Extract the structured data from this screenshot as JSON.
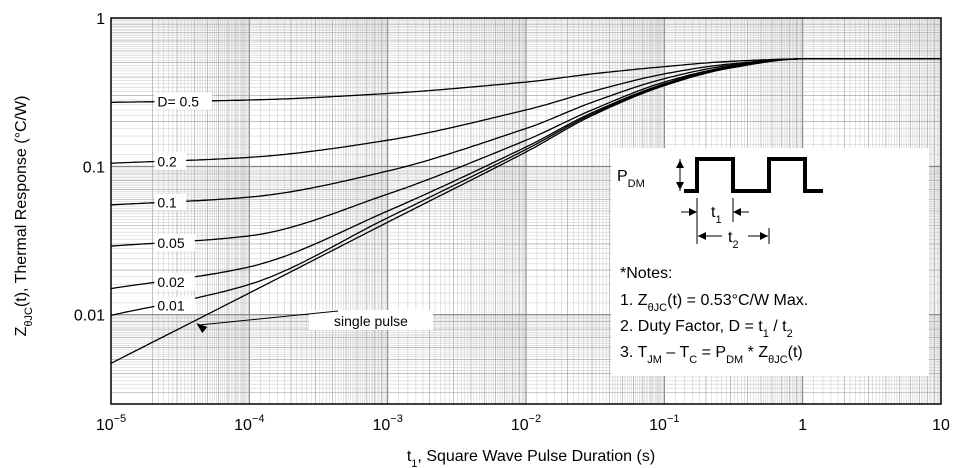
{
  "chart_data": {
    "type": "line",
    "xscale": "log",
    "yscale": "log",
    "xlim": [
      1e-05,
      10
    ],
    "ylim": [
      0.0025,
      1
    ],
    "grid": true,
    "xlabel": {
      "main": "t",
      "sub": "1",
      "rest": ", Square Wave Pulse Duration (s)"
    },
    "ylabel": {
      "main": "Z",
      "sub": "θJC",
      "rest": "(t), Thermal Response (°C/W)"
    },
    "xticks": [
      {
        "base": "10",
        "exp": "−5",
        "value": 1e-05
      },
      {
        "base": "10",
        "exp": "−4",
        "value": 0.0001
      },
      {
        "base": "10",
        "exp": "−3",
        "value": 0.001
      },
      {
        "base": "10",
        "exp": "−2",
        "value": 0.01
      },
      {
        "base": "10",
        "exp": "−1",
        "value": 0.1
      },
      {
        "base": "1",
        "exp": "",
        "value": 1
      },
      {
        "base": "10",
        "exp": "",
        "value": 10
      }
    ],
    "yticks": [
      {
        "label": "1",
        "value": 1
      },
      {
        "label": "0.1",
        "value": 0.1
      },
      {
        "label": "0.01",
        "value": 0.01
      }
    ],
    "series": [
      {
        "name": "D= 0.5",
        "x": [
          1e-05,
          0.0001,
          0.001,
          0.01,
          0.03,
          0.1,
          0.3,
          1,
          10
        ],
        "y": [
          0.27,
          0.28,
          0.31,
          0.37,
          0.42,
          0.47,
          0.51,
          0.53,
          0.53
        ]
      },
      {
        "name": "0.2",
        "x": [
          1e-05,
          0.0001,
          0.001,
          0.01,
          0.03,
          0.1,
          0.3,
          1,
          10
        ],
        "y": [
          0.105,
          0.115,
          0.15,
          0.24,
          0.32,
          0.42,
          0.49,
          0.53,
          0.53
        ]
      },
      {
        "name": "0.1",
        "x": [
          1e-05,
          0.0001,
          0.001,
          0.01,
          0.03,
          0.1,
          0.3,
          1,
          10
        ],
        "y": [
          0.055,
          0.062,
          0.093,
          0.18,
          0.27,
          0.39,
          0.48,
          0.53,
          0.53
        ]
      },
      {
        "name": "0.05",
        "x": [
          1e-05,
          0.0001,
          0.001,
          0.01,
          0.03,
          0.1,
          0.3,
          1,
          10
        ],
        "y": [
          0.029,
          0.034,
          0.065,
          0.15,
          0.24,
          0.37,
          0.47,
          0.53,
          0.53
        ]
      },
      {
        "name": "0.02",
        "x": [
          1e-05,
          0.0001,
          0.001,
          0.01,
          0.03,
          0.1,
          0.3,
          1,
          10
        ],
        "y": [
          0.015,
          0.021,
          0.05,
          0.135,
          0.23,
          0.36,
          0.47,
          0.53,
          0.53
        ]
      },
      {
        "name": "0.01",
        "x": [
          1e-05,
          0.0001,
          0.001,
          0.01,
          0.03,
          0.1,
          0.3,
          1,
          10
        ],
        "y": [
          0.0099,
          0.016,
          0.045,
          0.13,
          0.225,
          0.355,
          0.465,
          0.53,
          0.53
        ]
      },
      {
        "name": "single pulse",
        "x": [
          1e-05,
          0.0001,
          0.001,
          0.01,
          0.03,
          0.1,
          0.3,
          1,
          10
        ],
        "y": [
          0.0047,
          0.014,
          0.042,
          0.125,
          0.22,
          0.35,
          0.46,
          0.53,
          0.53
        ]
      }
    ],
    "curve_labels": [
      {
        "text": "D= 0.5",
        "series": 0,
        "x": 2.2e-05
      },
      {
        "text": "0.2",
        "series": 1,
        "x": 2.2e-05
      },
      {
        "text": "0.1",
        "series": 2,
        "x": 2.2e-05
      },
      {
        "text": "0.05",
        "series": 3,
        "x": 2.2e-05
      },
      {
        "text": "0.02",
        "series": 4,
        "x": 2.2e-05
      },
      {
        "text": "0.01",
        "series": 5,
        "x": 2.2e-05
      }
    ],
    "single_pulse_label": "single pulse",
    "inset": {
      "pdm": {
        "main": "P",
        "sub": "DM"
      },
      "t1": {
        "main": "t",
        "sub": "1"
      },
      "t2": {
        "main": "t",
        "sub": "2"
      }
    },
    "notes": {
      "title": "*Notes:",
      "lines": [
        [
          {
            "t": "1. Z"
          },
          {
            "t": "θJC",
            "sub": true
          },
          {
            "t": "(t) = 0.53°C/W Max."
          }
        ],
        [
          {
            "t": "2. Duty Factor, D = t"
          },
          {
            "t": "1",
            "sub": true
          },
          {
            "t": " / t"
          },
          {
            "t": "2",
            "sub": true
          }
        ],
        [
          {
            "t": "3. T"
          },
          {
            "t": "JM",
            "sub": true
          },
          {
            "t": " – T"
          },
          {
            "t": "C",
            "sub": true
          },
          {
            "t": " = P"
          },
          {
            "t": "DM",
            "sub": true
          },
          {
            "t": " * Z"
          },
          {
            "t": "θJC",
            "sub": true
          },
          {
            "t": "(t)"
          }
        ]
      ]
    }
  }
}
